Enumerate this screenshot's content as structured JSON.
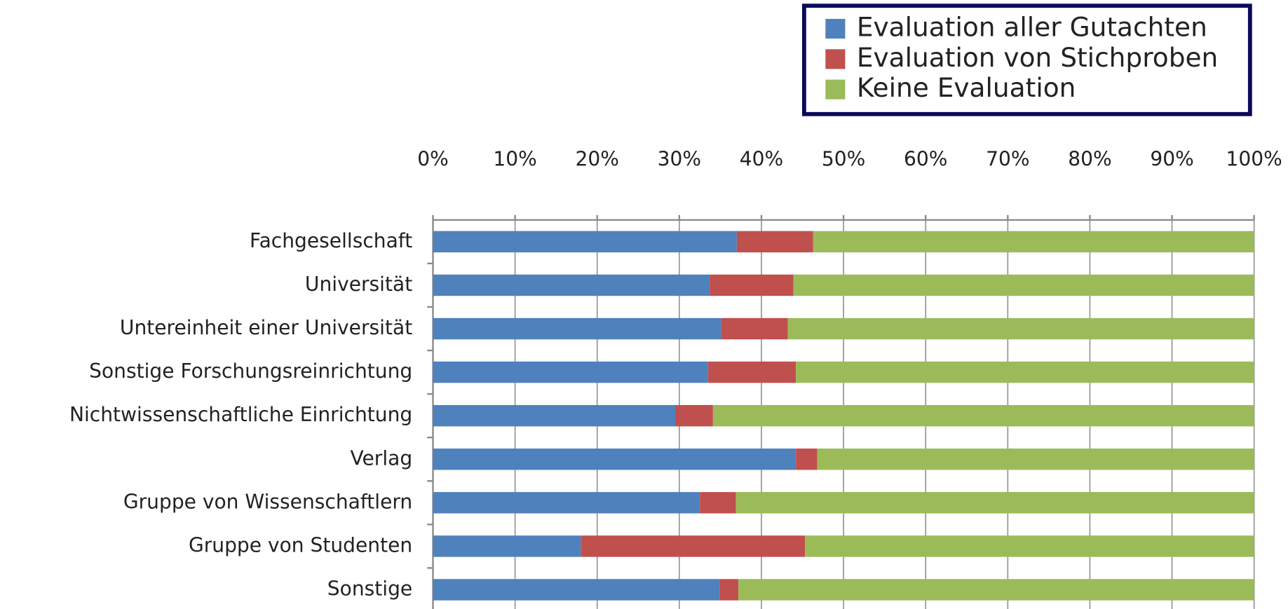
{
  "chart_data": {
    "type": "stacked-barh",
    "categories": [
      "Fachgesellschaft",
      "Universität",
      "Untereinheit einer Universität",
      "Sonstige Forschungsreinrichtung",
      "Nichtwissenschaftliche Einrichtung",
      "Verlag",
      "Gruppe von Wissenschaftlern",
      "Gruppe von Studenten",
      "Sonstige"
    ],
    "series": [
      {
        "name": "Evaluation aller Gutachten",
        "color": "#4f81bd",
        "values": [
          37.0,
          33.7,
          35.1,
          33.5,
          29.5,
          44.2,
          32.5,
          18.0,
          34.9
        ]
      },
      {
        "name": "Evaluation von Stichproben",
        "color": "#c0504d",
        "values": [
          9.3,
          10.2,
          8.1,
          10.7,
          4.6,
          2.6,
          4.4,
          27.3,
          2.3
        ]
      },
      {
        "name": "Keine Evaluation",
        "color": "#9bbb59",
        "values": [
          53.7,
          56.1,
          56.8,
          55.8,
          65.9,
          53.2,
          63.1,
          54.7,
          62.8
        ]
      }
    ],
    "xlim": [
      0,
      100
    ],
    "xticks": [
      {
        "value": 0,
        "label": "0%"
      },
      {
        "value": 10,
        "label": "10%"
      },
      {
        "value": 20,
        "label": "20%"
      },
      {
        "value": 30,
        "label": "30%"
      },
      {
        "value": 40,
        "label": "40%"
      },
      {
        "value": 50,
        "label": "50%"
      },
      {
        "value": 60,
        "label": "60%"
      },
      {
        "value": 70,
        "label": "70%"
      },
      {
        "value": 80,
        "label": "80%"
      },
      {
        "value": 90,
        "label": "90%"
      },
      {
        "value": 100,
        "label": "100%"
      }
    ],
    "grid": true
  }
}
